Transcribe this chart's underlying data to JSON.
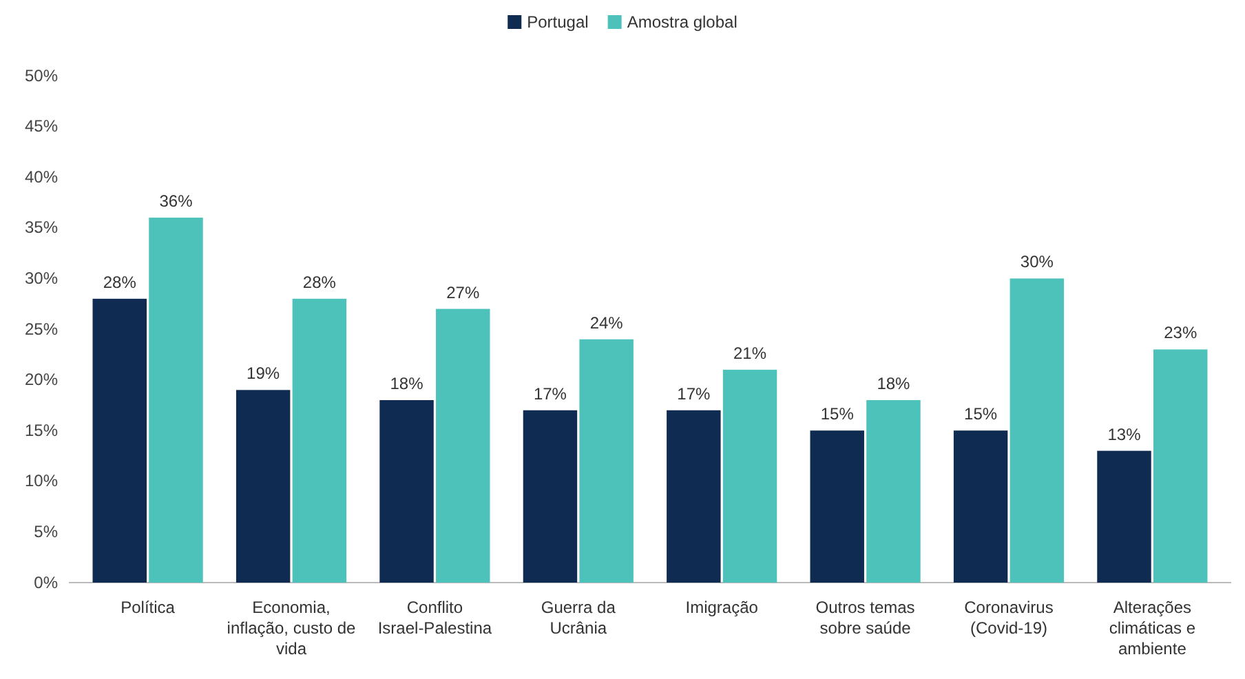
{
  "chart_data": {
    "type": "bar",
    "categories": [
      "Política",
      "Economia, inflação, custo de vida",
      "Conflito Israel-Palestina",
      "Guerra da Ucrânia",
      "Imigração",
      "Outros temas sobre saúde",
      "Coronavirus (Covid-19)",
      "Alterações climáticas e ambiente"
    ],
    "series": [
      {
        "name": "Portugal",
        "color": "#0f2b52",
        "values": [
          28,
          19,
          18,
          17,
          17,
          15,
          15,
          13
        ],
        "value_labels": [
          "28%",
          "19%",
          "18%",
          "17%",
          "17%",
          "15%",
          "15%",
          "13%"
        ]
      },
      {
        "name": "Amostra global",
        "color": "#4cc2ba",
        "values": [
          36,
          28,
          27,
          24,
          21,
          18,
          30,
          23
        ],
        "value_labels": [
          "36%",
          "28%",
          "27%",
          "24%",
          "21%",
          "18%",
          "30%",
          "23%"
        ]
      }
    ],
    "ylim": [
      0,
      50
    ],
    "yticks": [
      {
        "value": 0,
        "label": "0%"
      },
      {
        "value": 5,
        "label": "5%"
      },
      {
        "value": 10,
        "label": "10%"
      },
      {
        "value": 15,
        "label": "15%"
      },
      {
        "value": 20,
        "label": "20%"
      },
      {
        "value": 25,
        "label": "25%"
      },
      {
        "value": 30,
        "label": "30%"
      },
      {
        "value": 35,
        "label": "35%"
      },
      {
        "value": 40,
        "label": "40%"
      },
      {
        "value": 45,
        "label": "45%"
      },
      {
        "value": 50,
        "label": "50%"
      }
    ],
    "legend": "top",
    "grid": false
  }
}
